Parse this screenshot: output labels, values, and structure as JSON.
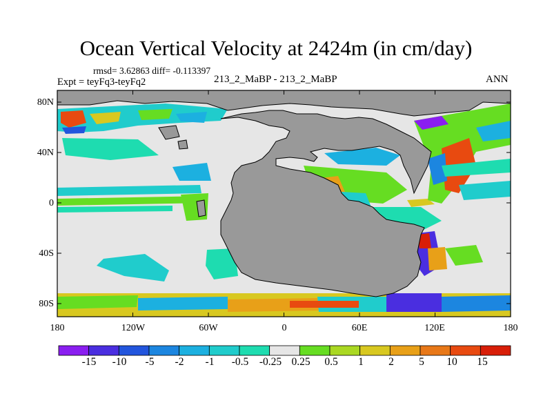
{
  "title": "Ocean Vertical Velocity at 2424m (in cm/day)",
  "stats_line": "rmsd= 3.62863 diff= -0.113397",
  "expt_line": "Expt = teyFq3-teyFq2",
  "case_line": "213_2_MaBP - 213_2_MaBP",
  "season": "ANN",
  "lat_labels": [
    "80N",
    "40N",
    "0",
    "40S",
    "80S"
  ],
  "lon_labels": [
    "180",
    "120W",
    "60W",
    "0",
    "60E",
    "120E",
    "180"
  ],
  "colorbar": {
    "labels": [
      "-15",
      "-10",
      "-5",
      "-2",
      "-1",
      "-0.5",
      "-0.25",
      "0.25",
      "0.5",
      "1",
      "2",
      "5",
      "10",
      "15"
    ],
    "colors": [
      "#8a1ef0",
      "#4a2ee0",
      "#2255dd",
      "#1c86e0",
      "#1cb0e0",
      "#20cccc",
      "#1edcb0",
      "#e6e6e6",
      "#66dd22",
      "#aad822",
      "#d8c820",
      "#e8a018",
      "#e87818",
      "#e84a10",
      "#d81e08"
    ]
  },
  "colors": {
    "land": "#999999",
    "ocean_neutral": "#e6e6e6",
    "coastline": "#000000"
  }
}
